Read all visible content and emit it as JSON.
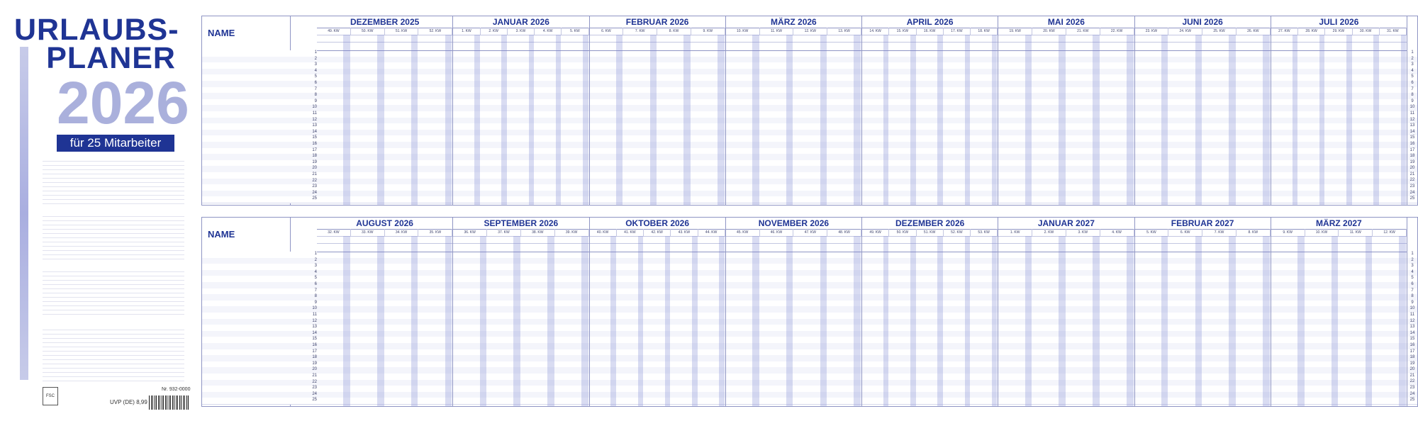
{
  "title": {
    "line1": "URLAUBS-",
    "line2": "PLANER",
    "year": "2026",
    "subtitle": "für 25 Mitarbeiter"
  },
  "footer": {
    "article_no": "Nr. 932-0000",
    "price": "UVP (DE) 8,99 €"
  },
  "colors": {
    "brand": "#1f3494",
    "weekend": "#aab0dc",
    "holiday": "#7f87cf"
  },
  "name_label": "NAME",
  "row_numbers": [
    "1",
    "2",
    "3",
    "4",
    "5",
    "6",
    "7",
    "8",
    "9",
    "10",
    "11",
    "12",
    "13",
    "14",
    "15",
    "16",
    "17",
    "18",
    "19",
    "20",
    "21",
    "22",
    "23",
    "24",
    "25"
  ],
  "panel_top": {
    "months": [
      {
        "name": "DEZEMBER 2025",
        "weeks": [
          "49. KW",
          "50. KW",
          "51. KW",
          "52. KW"
        ]
      },
      {
        "name": "JANUAR 2026",
        "weeks": [
          "1. KW",
          "2. KW",
          "3. KW",
          "4. KW",
          "5. KW"
        ]
      },
      {
        "name": "FEBRUAR 2026",
        "weeks": [
          "6. KW",
          "7. KW",
          "8. KW",
          "9. KW"
        ]
      },
      {
        "name": "MÄRZ 2026",
        "weeks": [
          "10. KW",
          "11. KW",
          "12. KW",
          "13. KW"
        ]
      },
      {
        "name": "APRIL 2026",
        "weeks": [
          "14. KW",
          "15. KW",
          "16. KW",
          "17. KW",
          "18. KW"
        ]
      },
      {
        "name": "MAI 2026",
        "weeks": [
          "19. KW",
          "20. KW",
          "21. KW",
          "22. KW"
        ]
      },
      {
        "name": "JUNI 2026",
        "weeks": [
          "23. KW",
          "24. KW",
          "25. KW",
          "26. KW"
        ]
      },
      {
        "name": "JULI 2026",
        "weeks": [
          "27. KW",
          "28. KW",
          "29. KW",
          "30. KW",
          "31. KW"
        ]
      }
    ]
  },
  "panel_bottom": {
    "months": [
      {
        "name": "AUGUST 2026",
        "weeks": [
          "32. KW",
          "33. KW",
          "34. KW",
          "35. KW"
        ]
      },
      {
        "name": "SEPTEMBER 2026",
        "weeks": [
          "36. KW",
          "37. KW",
          "38. KW",
          "39. KW"
        ]
      },
      {
        "name": "OKTOBER 2026",
        "weeks": [
          "40. KW",
          "41. KW",
          "42. KW",
          "43. KW",
          "44. KW"
        ]
      },
      {
        "name": "NOVEMBER 2026",
        "weeks": [
          "45. KW",
          "46. KW",
          "47. KW",
          "48. KW"
        ]
      },
      {
        "name": "DEZEMBER 2026",
        "weeks": [
          "49. KW",
          "50. KW",
          "51. KW",
          "52. KW",
          "53. KW"
        ]
      },
      {
        "name": "JANUAR 2027",
        "weeks": [
          "1. KW",
          "2. KW",
          "3. KW",
          "4. KW"
        ]
      },
      {
        "name": "FEBRUAR 2027",
        "weeks": [
          "5. KW",
          "6. KW",
          "7. KW",
          "8. KW"
        ]
      },
      {
        "name": "MÄRZ 2027",
        "weeks": [
          "9. KW",
          "10. KW",
          "11. KW",
          "12. KW"
        ]
      }
    ]
  }
}
